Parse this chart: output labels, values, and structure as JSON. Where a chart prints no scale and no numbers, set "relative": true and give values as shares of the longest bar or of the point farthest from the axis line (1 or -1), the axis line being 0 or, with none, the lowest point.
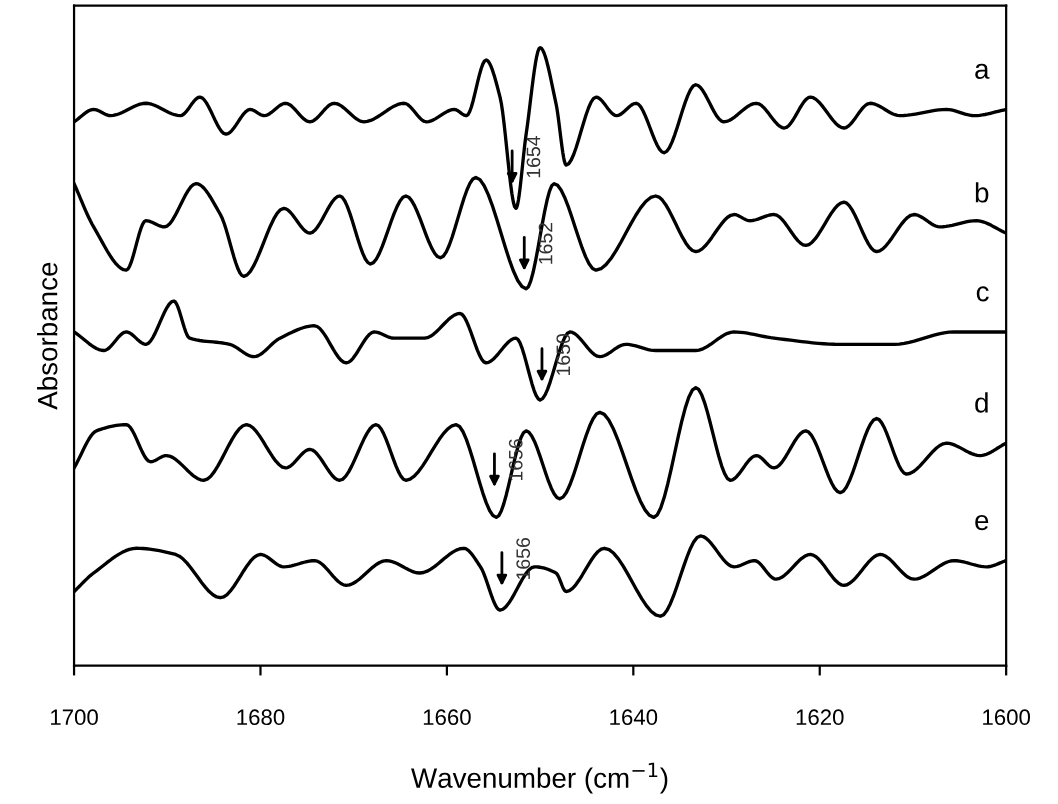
{
  "chart_data": {
    "type": "line",
    "relative": true,
    "xlabel": "Wavenumber (cm$^{−1}$)",
    "ylabel": "Absorbance",
    "xlim": [
      1700,
      1600
    ],
    "xticks": [
      1700,
      1680,
      1660,
      1640,
      1620,
      1600
    ],
    "grid": false,
    "legend": false,
    "marker": "none",
    "line_style": "solid",
    "series": [
      {
        "name": "a",
        "color": "#000000",
        "x": [
          1700.0,
          1697.9,
          1696.1,
          1692.3,
          1688.6,
          1686.5,
          1683.7,
          1681.1,
          1679.6,
          1677.3,
          1674.7,
          1672.1,
          1668.9,
          1664.6,
          1662.2,
          1659.2,
          1657.9,
          1655.8,
          1654.3,
          1652.6,
          1651.5,
          1650.0,
          1648.3,
          1647.2,
          1644.0,
          1641.8,
          1639.7,
          1636.7,
          1633.3,
          1630.3,
          1626.8,
          1623.8,
          1621.0,
          1617.4,
          1614.6,
          1611.4,
          1606.4,
          1603.4,
          1600.0
        ],
        "values": [
          0.88,
          0.9,
          0.89,
          0.91,
          0.89,
          0.92,
          0.86,
          0.9,
          0.89,
          0.91,
          0.88,
          0.91,
          0.88,
          0.91,
          0.88,
          0.9,
          0.89,
          0.98,
          0.92,
          0.74,
          0.86,
          1.0,
          0.91,
          0.81,
          0.92,
          0.89,
          0.91,
          0.83,
          0.94,
          0.88,
          0.91,
          0.87,
          0.92,
          0.87,
          0.91,
          0.89,
          0.9,
          0.89,
          0.9
        ]
      },
      {
        "name": "b",
        "color": "#000000",
        "x": [
          1700.0,
          1697.9,
          1694.4,
          1692.3,
          1690.3,
          1686.9,
          1684.3,
          1681.8,
          1677.5,
          1674.7,
          1671.5,
          1668.2,
          1664.4,
          1660.7,
          1656.9,
          1651.5,
          1648.5,
          1644.0,
          1637.6,
          1633.3,
          1629.2,
          1627.5,
          1624.9,
          1621.5,
          1617.4,
          1613.9,
          1609.9,
          1607.1,
          1603.2,
          1600.0
        ],
        "values": [
          0.78,
          0.71,
          0.64,
          0.72,
          0.71,
          0.78,
          0.73,
          0.63,
          0.74,
          0.7,
          0.76,
          0.65,
          0.76,
          0.66,
          0.79,
          0.61,
          0.78,
          0.64,
          0.76,
          0.67,
          0.73,
          0.72,
          0.73,
          0.68,
          0.75,
          0.67,
          0.73,
          0.71,
          0.72,
          0.7
        ]
      },
      {
        "name": "c",
        "color": "#000000",
        "x": [
          1700.0,
          1696.8,
          1694.4,
          1692.3,
          1689.3,
          1687.6,
          1683.3,
          1680.7,
          1677.9,
          1674.2,
          1670.8,
          1667.8,
          1665.7,
          1662.4,
          1658.6,
          1655.8,
          1652.6,
          1650.0,
          1646.8,
          1643.6,
          1640.8,
          1637.6,
          1633.3,
          1629.2,
          1624.9,
          1617.8,
          1612.0,
          1605.6,
          1600.0
        ],
        "values": [
          0.54,
          0.51,
          0.54,
          0.52,
          0.59,
          0.53,
          0.52,
          0.5,
          0.53,
          0.55,
          0.49,
          0.54,
          0.53,
          0.53,
          0.57,
          0.49,
          0.53,
          0.43,
          0.54,
          0.5,
          0.52,
          0.51,
          0.51,
          0.54,
          0.53,
          0.52,
          0.52,
          0.54,
          0.54
        ]
      },
      {
        "name": "d",
        "color": "#000000",
        "x": [
          1700.0,
          1697.6,
          1694.4,
          1691.8,
          1690.1,
          1686.1,
          1681.5,
          1677.3,
          1674.7,
          1671.5,
          1667.6,
          1664.4,
          1659.0,
          1654.7,
          1651.5,
          1647.9,
          1643.6,
          1637.8,
          1633.3,
          1629.6,
          1626.8,
          1624.9,
          1621.5,
          1617.8,
          1613.9,
          1610.7,
          1606.4,
          1602.8,
          1600.0
        ],
        "values": [
          0.32,
          0.38,
          0.39,
          0.33,
          0.34,
          0.3,
          0.39,
          0.32,
          0.35,
          0.3,
          0.39,
          0.3,
          0.39,
          0.24,
          0.38,
          0.27,
          0.41,
          0.24,
          0.45,
          0.3,
          0.34,
          0.32,
          0.38,
          0.28,
          0.4,
          0.31,
          0.36,
          0.34,
          0.36
        ]
      },
      {
        "name": "e",
        "color": "#000000",
        "x": [
          1700.0,
          1697.9,
          1693.3,
          1689.1,
          1684.3,
          1680.0,
          1677.5,
          1674.2,
          1670.8,
          1666.5,
          1662.9,
          1658.2,
          1656.4,
          1654.3,
          1650.6,
          1648.3,
          1647.2,
          1643.1,
          1637.1,
          1632.8,
          1629.2,
          1627.0,
          1624.7,
          1621.0,
          1617.4,
          1613.5,
          1609.9,
          1605.6,
          1602.1,
          1600.0
        ],
        "values": [
          0.12,
          0.15,
          0.19,
          0.18,
          0.11,
          0.18,
          0.16,
          0.17,
          0.13,
          0.17,
          0.15,
          0.19,
          0.16,
          0.09,
          0.16,
          0.15,
          0.12,
          0.19,
          0.08,
          0.21,
          0.16,
          0.17,
          0.14,
          0.18,
          0.13,
          0.18,
          0.14,
          0.17,
          0.16,
          0.17
        ]
      }
    ],
    "annotations": [
      {
        "text": "1654",
        "x": 1653.0,
        "y": 0.77
      },
      {
        "text": "1652",
        "x": 1651.7,
        "y": 0.63
      },
      {
        "text": "1650",
        "x": 1649.8,
        "y": 0.45
      },
      {
        "text": "1656",
        "x": 1654.9,
        "y": 0.28
      },
      {
        "text": "1656",
        "x": 1654.1,
        "y": 0.12
      }
    ]
  }
}
